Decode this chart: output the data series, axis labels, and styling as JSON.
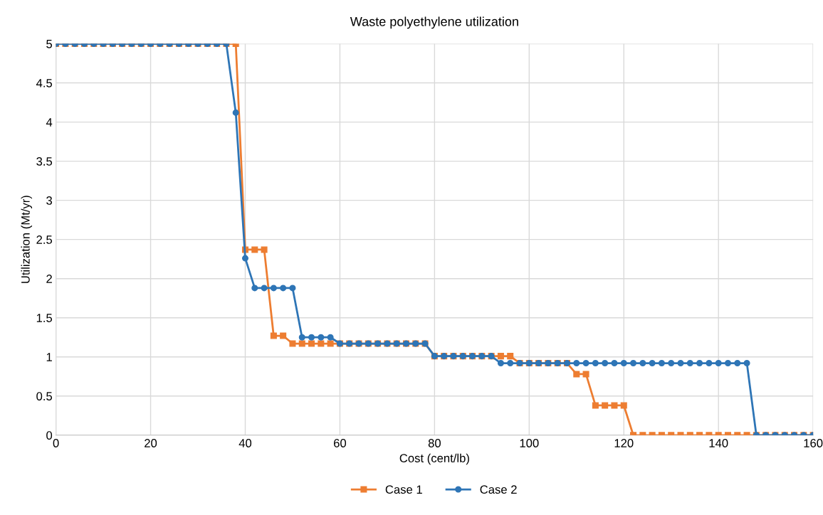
{
  "chart_data": {
    "type": "line",
    "title": "Waste polyethylene utilization",
    "xlabel": "Cost (cent/lb)",
    "ylabel": "Utilization (Mt/yr)",
    "x": [
      0,
      2,
      4,
      6,
      8,
      10,
      12,
      14,
      16,
      18,
      20,
      22,
      24,
      26,
      28,
      30,
      32,
      34,
      36,
      38,
      40,
      42,
      44,
      46,
      48,
      50,
      52,
      54,
      56,
      58,
      60,
      62,
      64,
      66,
      68,
      70,
      72,
      74,
      76,
      78,
      80,
      82,
      84,
      86,
      88,
      90,
      92,
      94,
      96,
      98,
      100,
      102,
      104,
      106,
      108,
      110,
      112,
      114,
      116,
      118,
      120,
      122,
      124,
      126,
      128,
      130,
      132,
      134,
      136,
      138,
      140,
      142,
      144,
      146,
      148,
      150,
      152,
      154,
      156,
      158,
      160
    ],
    "series": [
      {
        "name": "Case 1",
        "color": "#ed7d31",
        "marker": "square",
        "values": [
          5,
          5,
          5,
          5,
          5,
          5,
          5,
          5,
          5,
          5,
          5,
          5,
          5,
          5,
          5,
          5,
          5,
          5,
          5,
          5,
          2.37,
          2.37,
          2.37,
          1.27,
          1.27,
          1.17,
          1.17,
          1.17,
          1.17,
          1.17,
          1.17,
          1.17,
          1.17,
          1.17,
          1.17,
          1.17,
          1.17,
          1.17,
          1.17,
          1.17,
          1.01,
          1.01,
          1.01,
          1.01,
          1.01,
          1.01,
          1.01,
          1.01,
          1.01,
          0.92,
          0.92,
          0.92,
          0.92,
          0.92,
          0.92,
          0.78,
          0.78,
          0.38,
          0.38,
          0.38,
          0.38,
          0,
          0,
          0,
          0,
          0,
          0,
          0,
          0,
          0,
          0,
          0,
          0,
          0,
          0,
          0,
          0,
          0,
          0,
          0,
          0
        ]
      },
      {
        "name": "Case 2",
        "color": "#2e75b6",
        "marker": "circle",
        "values": [
          5,
          5,
          5,
          5,
          5,
          5,
          5,
          5,
          5,
          5,
          5,
          5,
          5,
          5,
          5,
          5,
          5,
          5,
          5,
          4.12,
          2.26,
          1.88,
          1.88,
          1.88,
          1.88,
          1.88,
          1.25,
          1.25,
          1.25,
          1.25,
          1.17,
          1.17,
          1.17,
          1.17,
          1.17,
          1.17,
          1.17,
          1.17,
          1.17,
          1.17,
          1.01,
          1.01,
          1.01,
          1.01,
          1.01,
          1.01,
          1.01,
          0.92,
          0.92,
          0.92,
          0.92,
          0.92,
          0.92,
          0.92,
          0.92,
          0.92,
          0.92,
          0.92,
          0.92,
          0.92,
          0.92,
          0.92,
          0.92,
          0.92,
          0.92,
          0.92,
          0.92,
          0.92,
          0.92,
          0.92,
          0.92,
          0.92,
          0.92,
          0.92,
          0,
          0,
          0,
          0,
          0,
          0,
          0
        ]
      }
    ],
    "xlim": [
      0,
      160
    ],
    "xticks": [
      0,
      20,
      40,
      60,
      80,
      100,
      120,
      140,
      160
    ],
    "ylim": [
      0,
      5
    ],
    "yticks": [
      0,
      0.5,
      1,
      1.5,
      2,
      2.5,
      3,
      3.5,
      4,
      4.5,
      5
    ],
    "grid": true,
    "legend": "bottom",
    "line_style": "solid"
  }
}
